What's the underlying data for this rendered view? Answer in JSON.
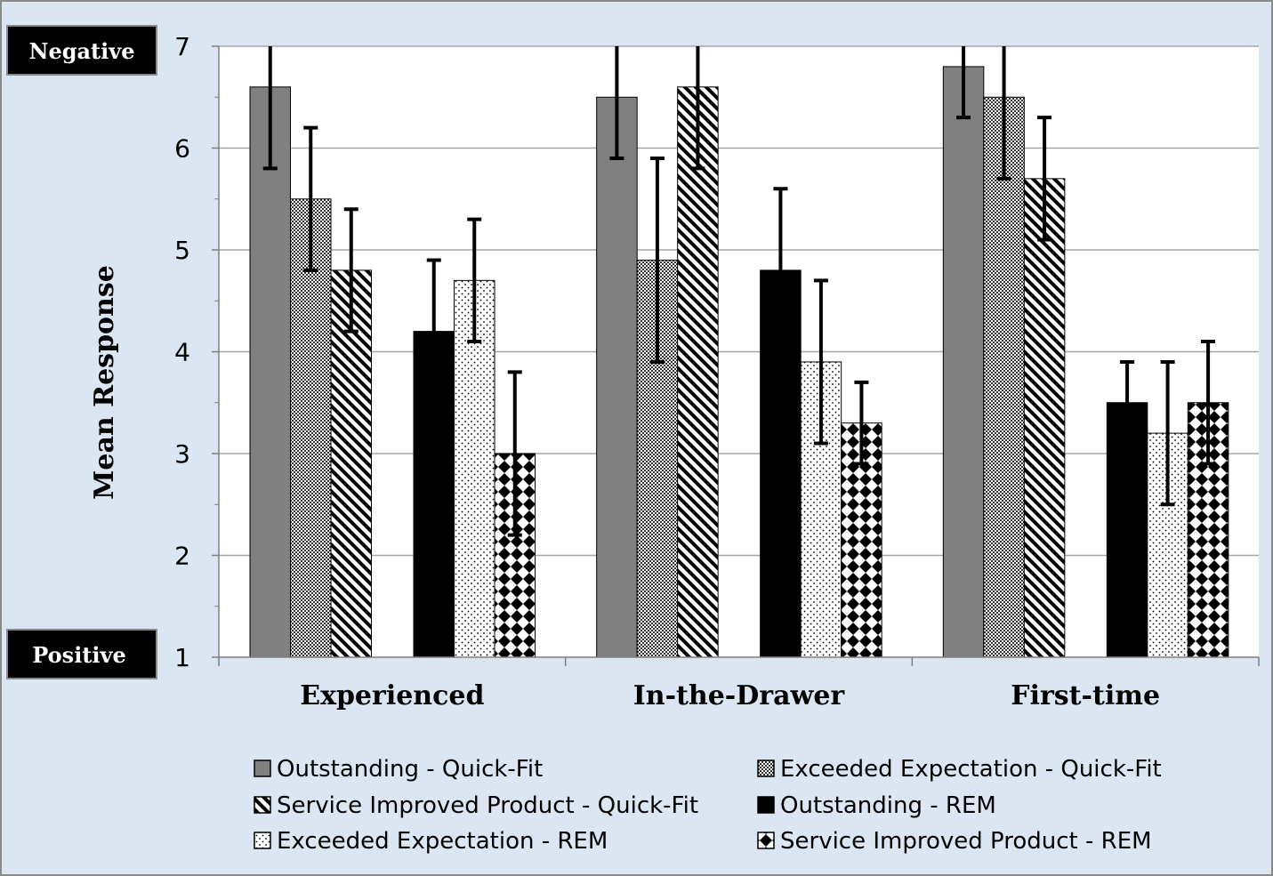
{
  "chart_data": {
    "type": "bar",
    "ylabel": "Mean Response",
    "ylim": [
      1,
      7
    ],
    "yticks": [
      "1",
      "2",
      "3",
      "4",
      "5",
      "6",
      "7"
    ],
    "grid": true,
    "legend_position": "bottom",
    "top_marker": "Negative",
    "bottom_marker": "Positive",
    "categories": [
      "Experienced",
      "In-the-Drawer",
      "First-time"
    ],
    "series": [
      {
        "name": "Outstanding - Quick-Fit",
        "pattern": "gray",
        "values": [
          6.6,
          6.5,
          6.8
        ],
        "errors": [
          0.8,
          0.6,
          0.5
        ]
      },
      {
        "name": "Exceeded Expectation - Quick-Fit",
        "pattern": "checker",
        "values": [
          5.5,
          4.9,
          6.5
        ],
        "errors": [
          0.7,
          1.0,
          0.8
        ]
      },
      {
        "name": "Service Improved Product - Quick-Fit",
        "pattern": "diagonal",
        "values": [
          4.8,
          6.6,
          5.7
        ],
        "errors": [
          0.6,
          0.8,
          0.6
        ]
      },
      {
        "name": "Outstanding - REM",
        "pattern": "black",
        "values": [
          4.2,
          4.8,
          3.5
        ],
        "errors": [
          0.7,
          0.8,
          0.4
        ]
      },
      {
        "name": "Exceeded Expectation - REM",
        "pattern": "dots",
        "values": [
          4.7,
          3.9,
          3.2
        ],
        "errors": [
          0.6,
          0.8,
          0.7
        ]
      },
      {
        "name": "Service Improved Product - REM",
        "pattern": "diamonds",
        "values": [
          3.0,
          3.3,
          3.5
        ],
        "errors": [
          0.8,
          0.4,
          0.6
        ]
      }
    ],
    "colors": {
      "gray": "#808080",
      "black": "#000000",
      "grid": "#a6a6a6",
      "background": "#dce6f2",
      "plot": "#ffffff"
    }
  }
}
